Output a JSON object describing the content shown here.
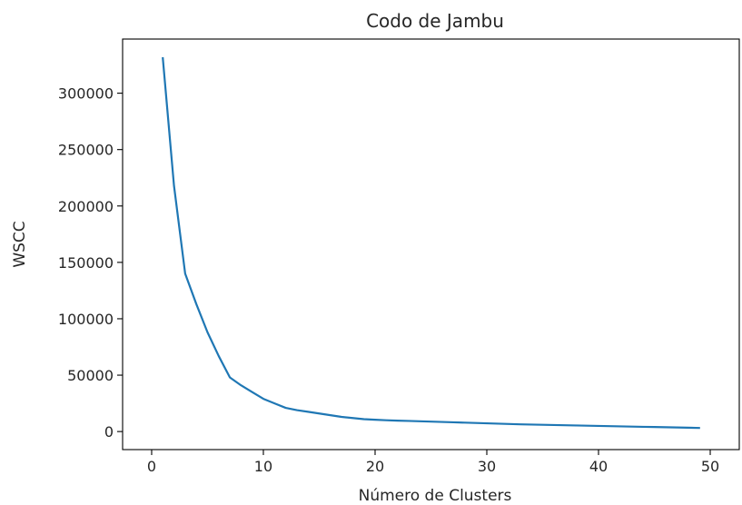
{
  "chart_data": {
    "type": "line",
    "title": "Codo de Jambu",
    "xlabel": "Número de Clusters",
    "ylabel": "WSCC",
    "xlim": [
      -2.6,
      52.6
    ],
    "ylim": [
      -16000,
      348000
    ],
    "x_ticks": [
      0,
      10,
      20,
      30,
      40,
      50
    ],
    "x_tick_labels": [
      "0",
      "10",
      "20",
      "30",
      "40",
      "50"
    ],
    "y_ticks": [
      0,
      50000,
      100000,
      150000,
      200000,
      250000,
      300000
    ],
    "y_tick_labels": [
      "0",
      "50000",
      "100000",
      "150000",
      "200000",
      "250000",
      "300000"
    ],
    "grid": false,
    "series": [
      {
        "color": "#1f77b4",
        "x": [
          1,
          2,
          3,
          4,
          5,
          6,
          7,
          8,
          9,
          10,
          11,
          12,
          13,
          14,
          15,
          16,
          17,
          18,
          19,
          20,
          21,
          22,
          23,
          24,
          25,
          26,
          27,
          28,
          29,
          30,
          31,
          32,
          33,
          34,
          35,
          36,
          37,
          38,
          39,
          40,
          41,
          42,
          43,
          44,
          45,
          46,
          47,
          48,
          49
        ],
        "y": [
          331000,
          218000,
          140000,
          113000,
          88000,
          67000,
          48000,
          41000,
          35000,
          29000,
          25000,
          21000,
          19000,
          17500,
          16000,
          14500,
          13000,
          12000,
          11000,
          10500,
          10000,
          9700,
          9400,
          9100,
          8800,
          8500,
          8200,
          7900,
          7600,
          7300,
          7000,
          6700,
          6400,
          6200,
          6000,
          5800,
          5600,
          5400,
          5200,
          5000,
          4800,
          4600,
          4400,
          4200,
          4000,
          3800,
          3600,
          3400,
          3200
        ]
      }
    ]
  }
}
